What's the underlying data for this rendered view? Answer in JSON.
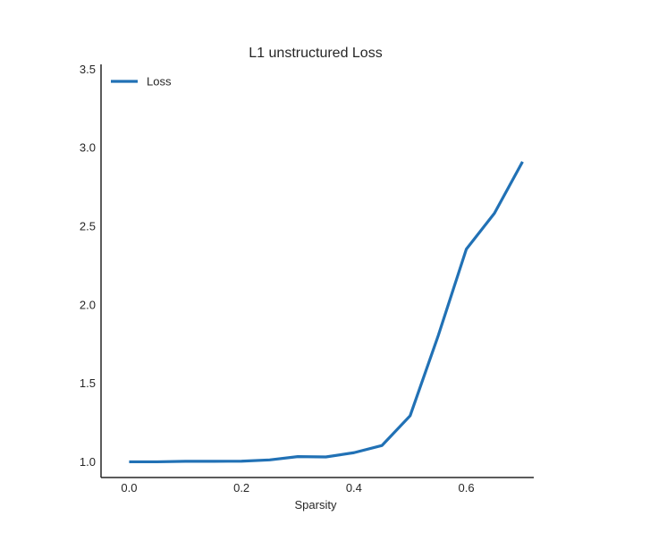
{
  "chart_data": {
    "type": "line",
    "title": "L1 unstructured Loss",
    "xlabel": "Sparsity",
    "ylabel": "",
    "xlim": [
      -0.05,
      0.72
    ],
    "ylim": [
      0.9,
      3.53
    ],
    "xticks": [
      0.0,
      0.2,
      0.4,
      0.6
    ],
    "xtick_labels": [
      "0.0",
      "0.2",
      "0.4",
      "0.6"
    ],
    "yticks": [
      1.0,
      1.5,
      2.0,
      2.5,
      3.0,
      3.5
    ],
    "ytick_labels": [
      "1.0",
      "1.5",
      "2.0",
      "2.5",
      "3.0",
      "3.5"
    ],
    "grid": false,
    "legend": {
      "position": "top-left",
      "entries": [
        "Loss"
      ]
    },
    "series": [
      {
        "name": "Loss",
        "color": "#2171b5",
        "x": [
          0.0,
          0.05,
          0.1,
          0.15,
          0.2,
          0.25,
          0.3,
          0.35,
          0.4,
          0.45,
          0.5,
          0.55,
          0.6,
          0.65,
          0.7
        ],
        "y": [
          1.0,
          1.0,
          1.003,
          1.003,
          1.004,
          1.012,
          1.033,
          1.031,
          1.058,
          1.104,
          1.293,
          1.803,
          2.354,
          2.582,
          2.91
        ]
      }
    ]
  }
}
